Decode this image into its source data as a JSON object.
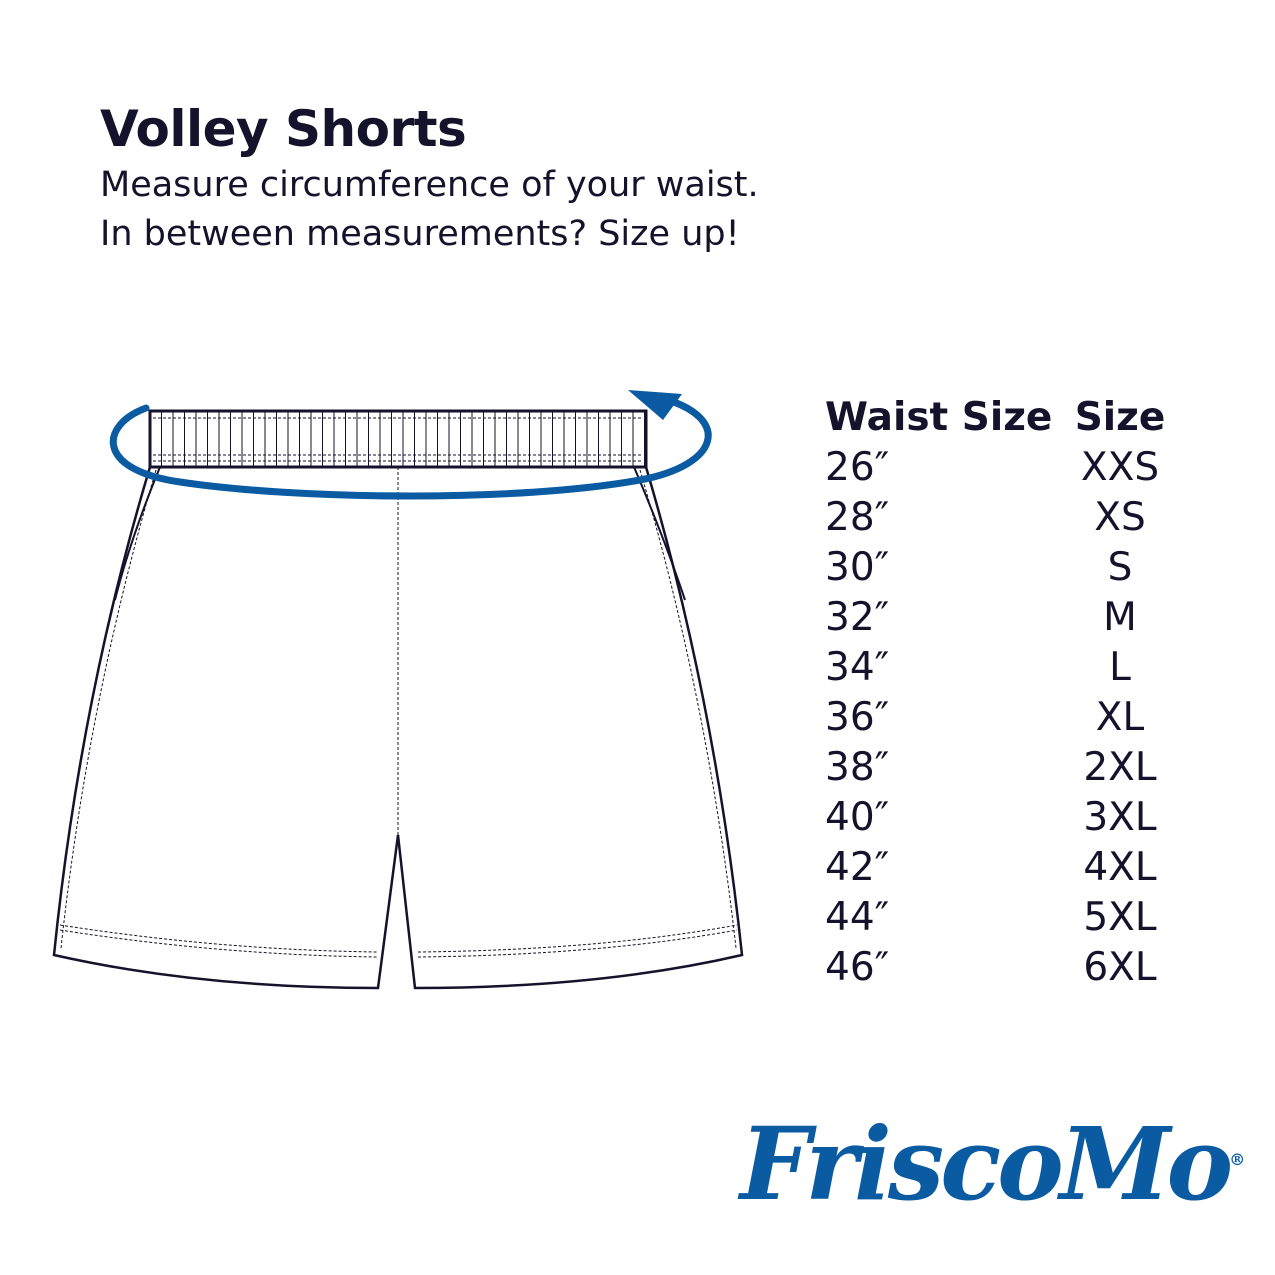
{
  "header": {
    "title": "Volley Shorts",
    "subtitle_line1": "Measure circumference of your waist.",
    "subtitle_line2": "In between measurements? Size up!"
  },
  "size_table": {
    "columns": [
      "Waist Size",
      "Size"
    ],
    "rows": [
      [
        "26″",
        "XXS"
      ],
      [
        "28″",
        "XS"
      ],
      [
        "30″",
        "S"
      ],
      [
        "32″",
        "M"
      ],
      [
        "34″",
        "L"
      ],
      [
        "36″",
        "XL"
      ],
      [
        "38″",
        "2XL"
      ],
      [
        "40″",
        "3XL"
      ],
      [
        "42″",
        "4XL"
      ],
      [
        "44″",
        "5XL"
      ],
      [
        "46″",
        "6XL"
      ]
    ]
  },
  "logo": {
    "text": "FriscoMo",
    "mark": "®"
  },
  "colors": {
    "text": "#15122b",
    "accent_blue": "#0b5ba3"
  },
  "icons": {
    "measure_arrow": "circular-arrow-icon"
  }
}
